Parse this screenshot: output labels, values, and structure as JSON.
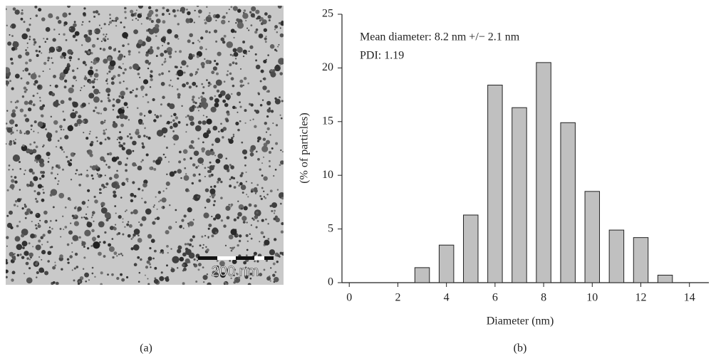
{
  "panels": [
    {
      "caption": "(a)",
      "scale_bar_label": "200 nm"
    },
    {
      "caption": "(b)"
    }
  ],
  "chart_data": {
    "type": "bar",
    "x": [
      3,
      4,
      5,
      6,
      7,
      8,
      9,
      10,
      11,
      12,
      13
    ],
    "values": [
      1.4,
      3.5,
      6.3,
      18.4,
      16.3,
      20.5,
      14.9,
      8.5,
      4.9,
      4.2,
      0.7
    ],
    "color": "#c0c0c0",
    "xlim": [
      -0.3,
      14.8
    ],
    "xticks": [
      0,
      2,
      4,
      6,
      8,
      10,
      12,
      14
    ],
    "ylim": [
      0,
      25
    ],
    "yticks": [
      0,
      5,
      10,
      15,
      20,
      25
    ],
    "xlabel": "Diameter (nm)",
    "ylabel": "(% of particles)",
    "annotations": [
      "Mean diameter: 8.2 nm +/−  2.1 nm",
      "PDI: 1.19"
    ]
  }
}
